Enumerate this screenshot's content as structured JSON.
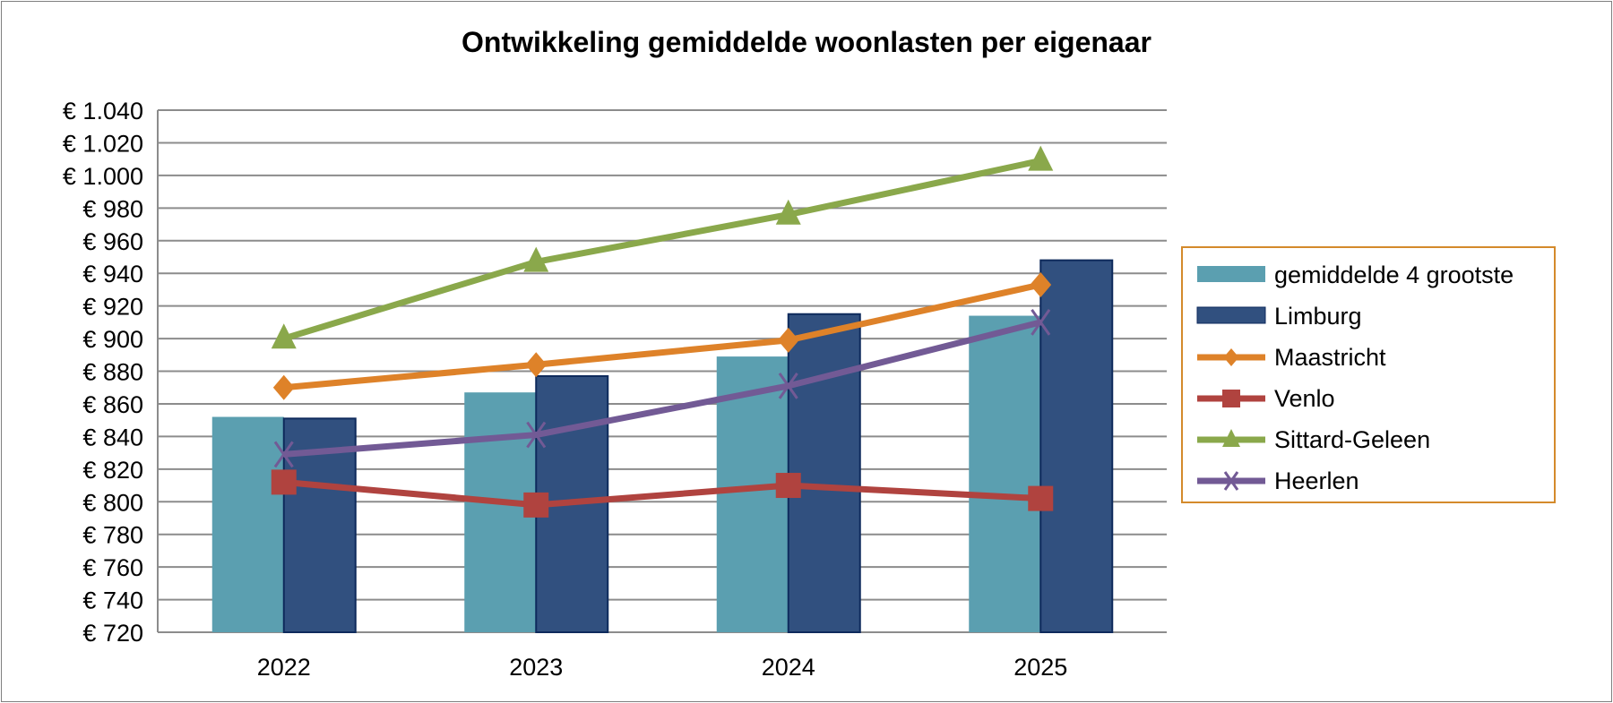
{
  "chart_data": {
    "type": "bar",
    "title": "Ontwikkeling gemiddelde woonlasten per eigenaar",
    "categories": [
      "2022",
      "2023",
      "2024",
      "2025"
    ],
    "ylim": [
      720,
      1040
    ],
    "ytick_step": 20,
    "ytick_labels": [
      "€ 720",
      "€ 740",
      "€ 760",
      "€ 780",
      "€ 800",
      "€ 820",
      "€ 840",
      "€ 860",
      "€ 880",
      "€ 900",
      "€ 920",
      "€ 940",
      "€ 960",
      "€ 980",
      "€ 1.000",
      "€ 1.020",
      "€ 1.040"
    ],
    "grid": true,
    "legend_position": "right",
    "series": [
      {
        "name": "gemiddelde 4 grootste",
        "kind": "bar",
        "color": "#5b9fb0",
        "values": [
          852,
          867,
          889,
          914
        ]
      },
      {
        "name": "Limburg",
        "kind": "bar",
        "color": "#31507f",
        "values": [
          851,
          877,
          915,
          948
        ]
      },
      {
        "name": "Maastricht",
        "kind": "line",
        "marker": "diamond",
        "color": "#de8229",
        "values": [
          870,
          884,
          899,
          933
        ]
      },
      {
        "name": "Venlo",
        "kind": "line",
        "marker": "square",
        "color": "#b0433f",
        "values": [
          812,
          798,
          810,
          802
        ]
      },
      {
        "name": "Sittard-Geleen",
        "kind": "line",
        "marker": "triangle",
        "color": "#8aa84b",
        "values": [
          900,
          947,
          976,
          1009
        ]
      },
      {
        "name": "Heerlen",
        "kind": "line",
        "marker": "x",
        "color": "#725a95",
        "values": [
          829,
          841,
          871,
          910
        ]
      }
    ]
  }
}
